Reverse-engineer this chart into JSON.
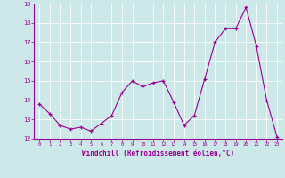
{
  "x": [
    0,
    1,
    2,
    3,
    4,
    5,
    6,
    7,
    8,
    9,
    10,
    11,
    12,
    13,
    14,
    15,
    16,
    17,
    18,
    19,
    20,
    21,
    22,
    23
  ],
  "y": [
    13.8,
    13.3,
    12.7,
    12.5,
    12.6,
    12.4,
    12.8,
    13.2,
    14.4,
    15.0,
    14.7,
    14.9,
    15.0,
    13.9,
    12.7,
    13.2,
    15.1,
    17.0,
    17.7,
    17.7,
    18.8,
    16.8,
    14.0,
    12.1
  ],
  "line_color": "#990099",
  "marker": "+",
  "marker_size": 3,
  "bg_color": "#cce8e8",
  "grid_color": "#ffffff",
  "axis_label_color": "#990099",
  "tick_label_color": "#990099",
  "xlabel": "Windchill (Refroidissement éolien,°C)",
  "ylim": [
    12,
    19
  ],
  "xlim": [
    -0.5,
    23.5
  ],
  "yticks": [
    12,
    13,
    14,
    15,
    16,
    17,
    18,
    19
  ],
  "xticks": [
    0,
    1,
    2,
    3,
    4,
    5,
    6,
    7,
    8,
    9,
    10,
    11,
    12,
    13,
    14,
    15,
    16,
    17,
    18,
    19,
    20,
    21,
    22,
    23
  ]
}
